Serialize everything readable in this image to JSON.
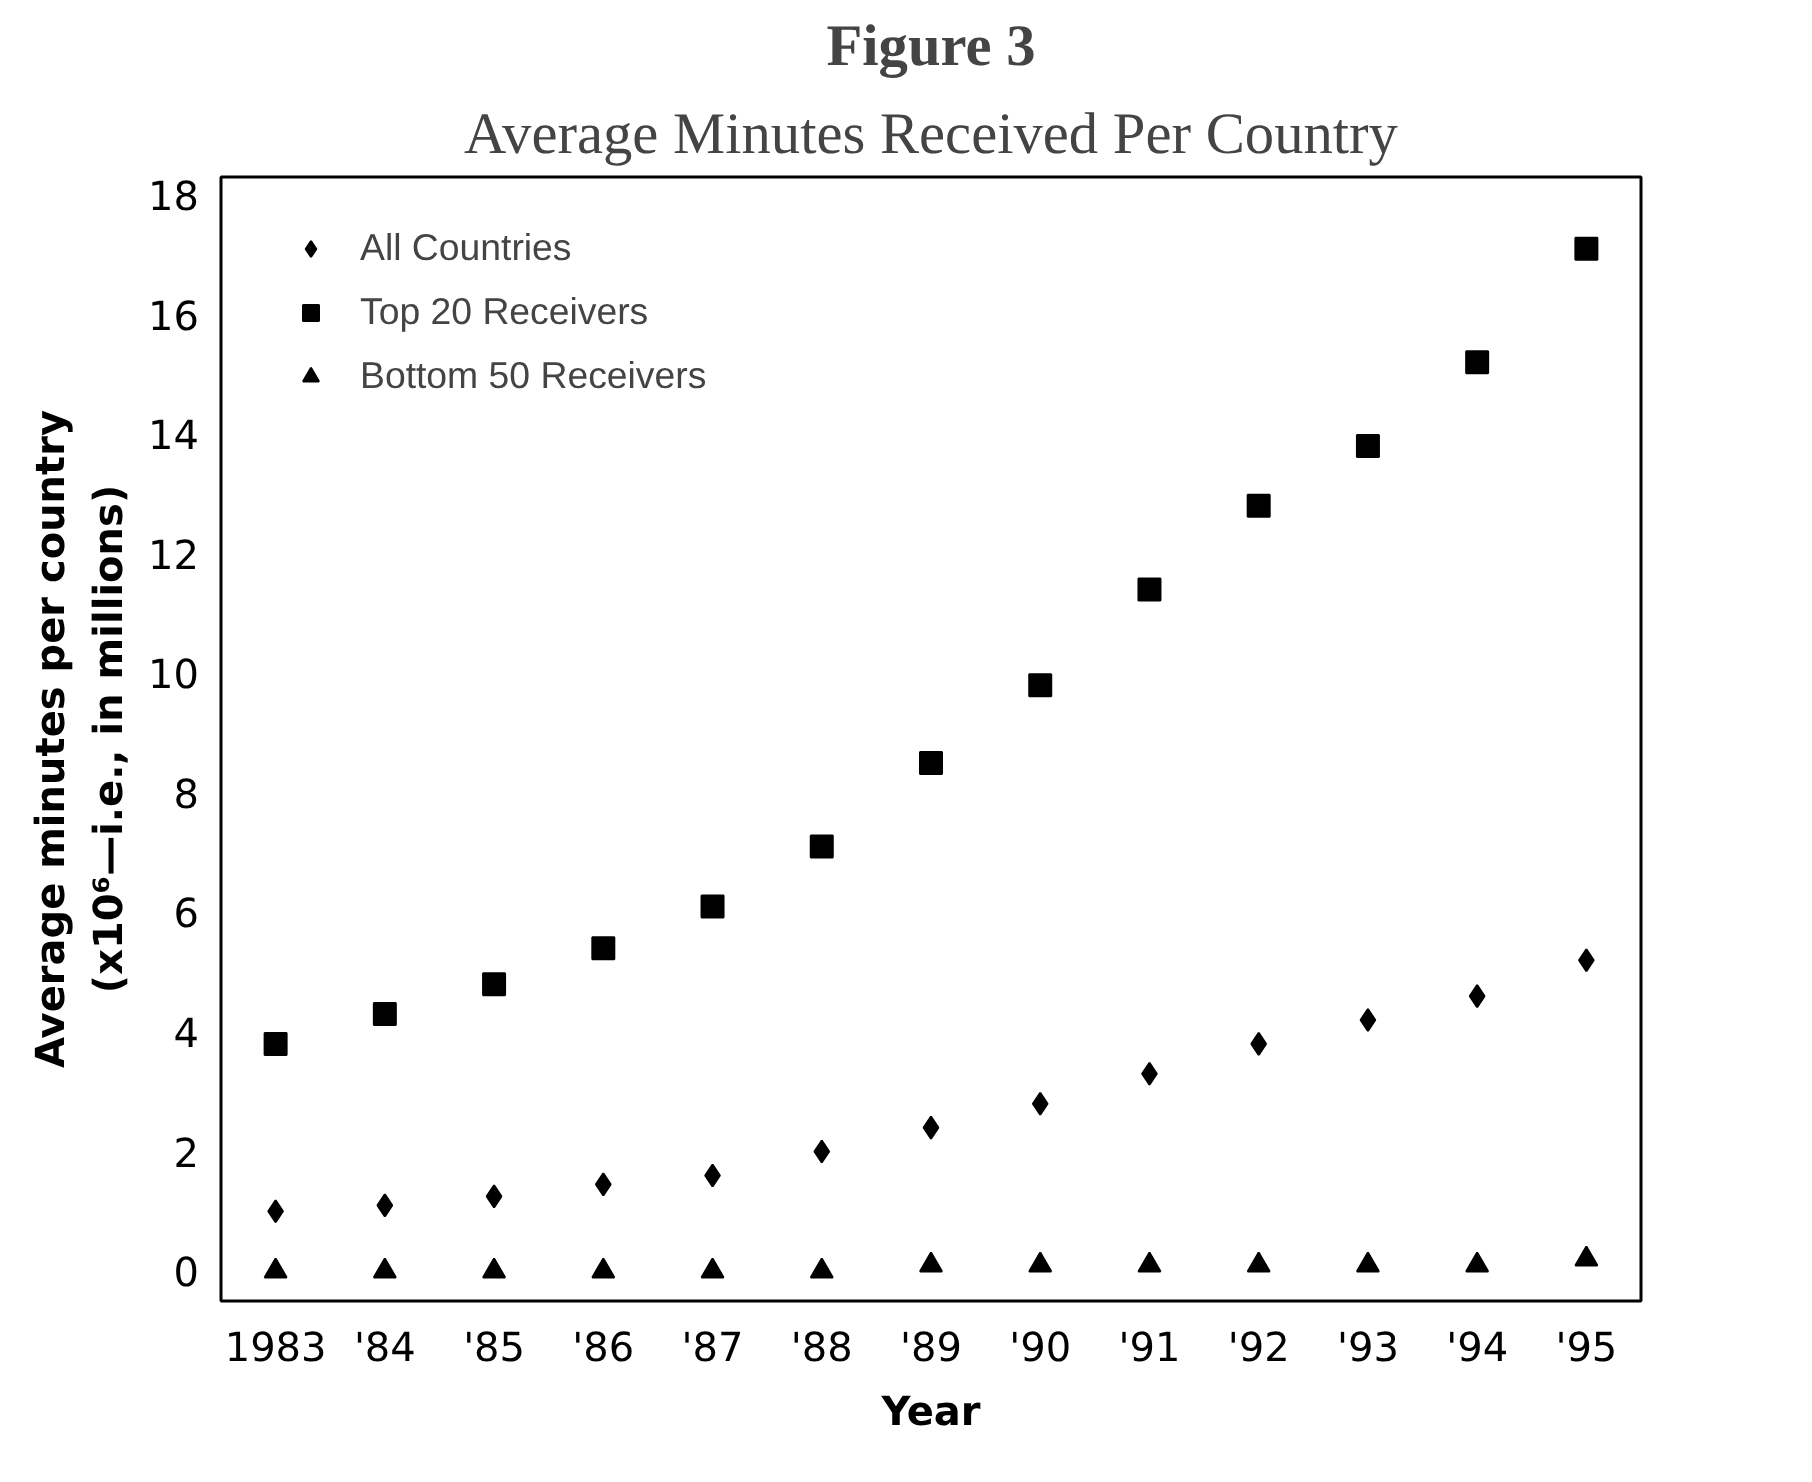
{
  "chart_data": {
    "type": "scatter",
    "title": "Figure 3",
    "subtitle": "Average Minutes Received Per Country",
    "xlabel": "Year",
    "ylabel": "Average minutes per country\n(x10⁶—i.e., in millions)",
    "categories": [
      "1983",
      "'84",
      "'85",
      "'86",
      "'87",
      "'88",
      "'89",
      "'90",
      "'91",
      "'92",
      "'93",
      "'94",
      "'95"
    ],
    "ylim": [
      -0.5,
      18.3
    ],
    "yticks": [
      0,
      2,
      4,
      6,
      8,
      10,
      12,
      14,
      16,
      18
    ],
    "grid": false,
    "legend": "top left",
    "series": [
      {
        "name": "All Countries",
        "color": "#000000",
        "marker": "diamond",
        "values": [
          1.0,
          1.1,
          1.25,
          1.45,
          1.6,
          2.0,
          2.4,
          2.8,
          3.3,
          3.8,
          4.2,
          4.6,
          5.2
        ]
      },
      {
        "name": "Top 20 Receivers",
        "color": "#000000",
        "marker": "square",
        "values": [
          3.8,
          4.3,
          4.8,
          5.4,
          6.1,
          7.1,
          8.5,
          9.8,
          11.4,
          12.8,
          13.8,
          15.2,
          17.1
        ]
      },
      {
        "name": "Bottom 50 Receivers",
        "color": "#000000",
        "marker": "triangle",
        "values": [
          0.0,
          0.0,
          0.0,
          0.0,
          0.0,
          0.0,
          0.1,
          0.1,
          0.1,
          0.1,
          0.1,
          0.1,
          0.2
        ]
      }
    ]
  }
}
